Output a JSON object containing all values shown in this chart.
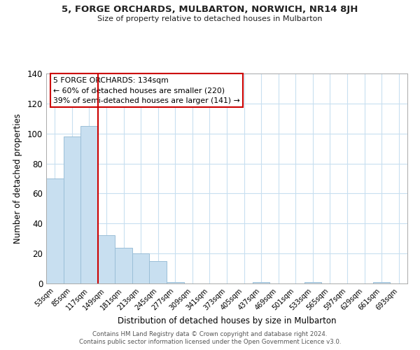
{
  "title": "5, FORGE ORCHARDS, MULBARTON, NORWICH, NR14 8JH",
  "subtitle": "Size of property relative to detached houses in Mulbarton",
  "xlabel": "Distribution of detached houses by size in Mulbarton",
  "ylabel": "Number of detached properties",
  "bar_labels": [
    "53sqm",
    "85sqm",
    "117sqm",
    "149sqm",
    "181sqm",
    "213sqm",
    "245sqm",
    "277sqm",
    "309sqm",
    "341sqm",
    "373sqm",
    "405sqm",
    "437sqm",
    "469sqm",
    "501sqm",
    "533sqm",
    "565sqm",
    "597sqm",
    "629sqm",
    "661sqm",
    "693sqm"
  ],
  "bar_values": [
    70,
    98,
    105,
    32,
    24,
    20,
    15,
    1,
    0,
    0,
    0,
    0,
    1,
    0,
    0,
    1,
    0,
    0,
    0,
    1,
    0
  ],
  "bar_color": "#c8dff0",
  "bar_edge_color": "#9bbfd8",
  "vline_x": 2.5,
  "vline_color": "#cc0000",
  "ylim": [
    0,
    140
  ],
  "yticks": [
    0,
    20,
    40,
    60,
    80,
    100,
    120,
    140
  ],
  "annotation_box_text": "5 FORGE ORCHARDS: 134sqm\n← 60% of detached houses are smaller (220)\n39% of semi-detached houses are larger (141) →",
  "footer_line1": "Contains HM Land Registry data © Crown copyright and database right 2024.",
  "footer_line2": "Contains public sector information licensed under the Open Government Licence v3.0.",
  "background_color": "#ffffff",
  "grid_color": "#c8dff0"
}
